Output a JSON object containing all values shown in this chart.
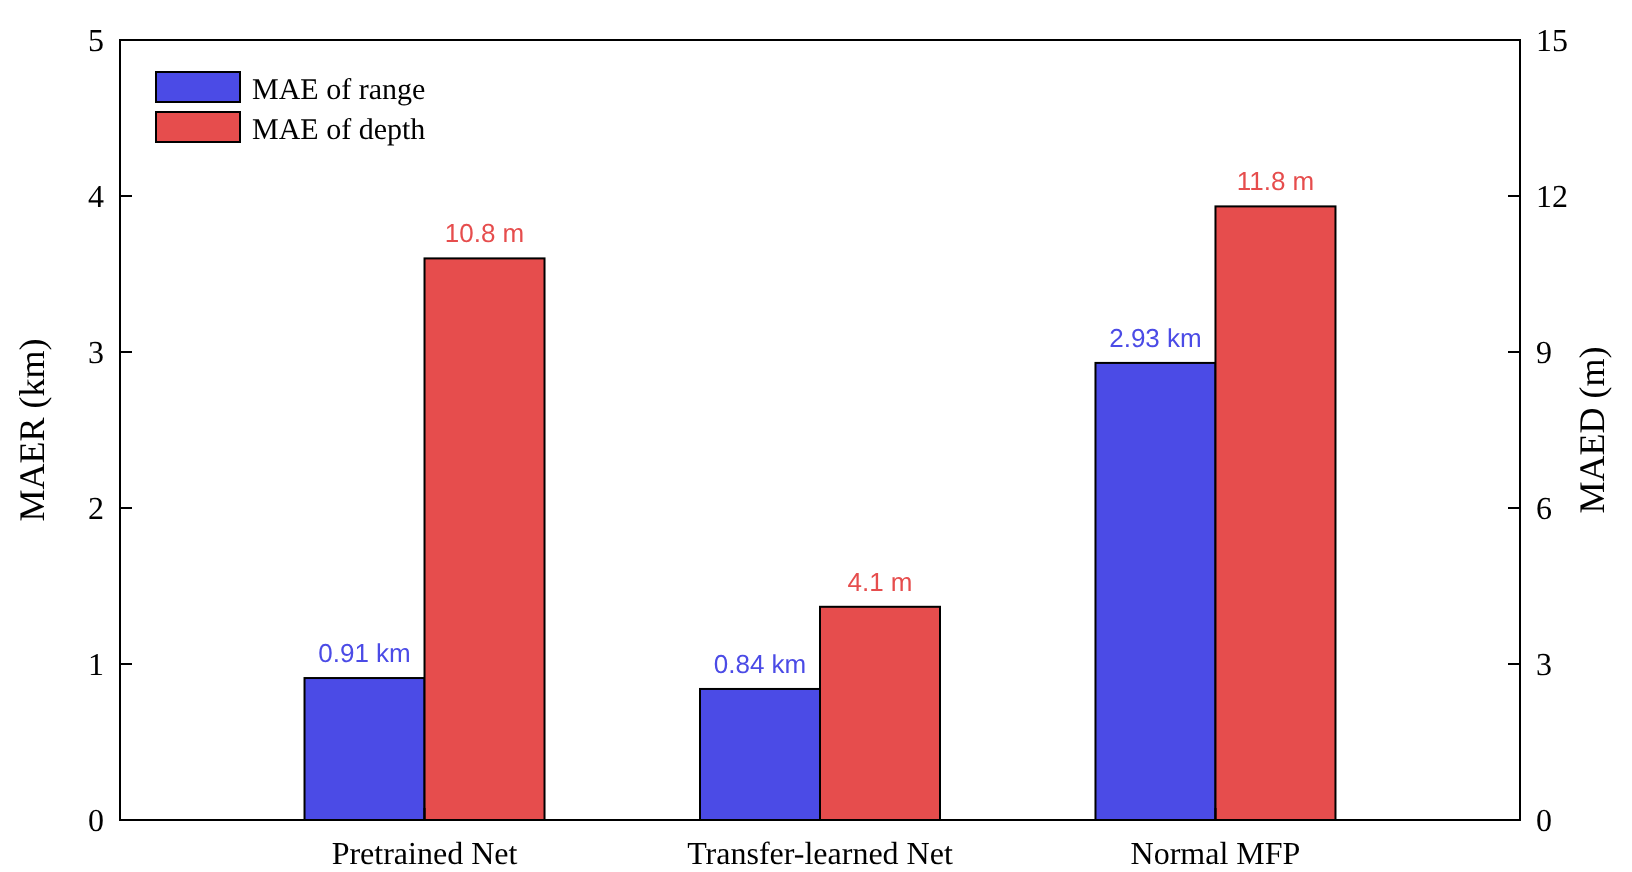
{
  "chart_data": {
    "type": "bar",
    "categories": [
      "Pretrained Net",
      "Transfer-learned Net",
      "Normal MFP"
    ],
    "ylabel": "MAER (km)",
    "y2label": "MAED (m)",
    "ylim": [
      0,
      5
    ],
    "yticks": [
      0,
      1,
      2,
      3,
      4,
      5
    ],
    "y2lim": [
      0,
      15
    ],
    "y2ticks": [
      0,
      3,
      6,
      9,
      12,
      15
    ],
    "legend": "top left",
    "grid": false,
    "series": [
      {
        "name": "MAE of range",
        "color": "#4b4be6",
        "values": [
          0.91,
          0.84,
          2.93
        ],
        "value_labels": [
          "0.91 km",
          "0.84 km",
          "2.93 km"
        ]
      },
      {
        "name": "MAE of depth",
        "color": "#e64d4d",
        "axis": "y2",
        "values": [
          10.8,
          4.1,
          11.8
        ],
        "value_labels": [
          "10.8 m",
          "4.1 m",
          "11.8 m"
        ]
      }
    ]
  }
}
